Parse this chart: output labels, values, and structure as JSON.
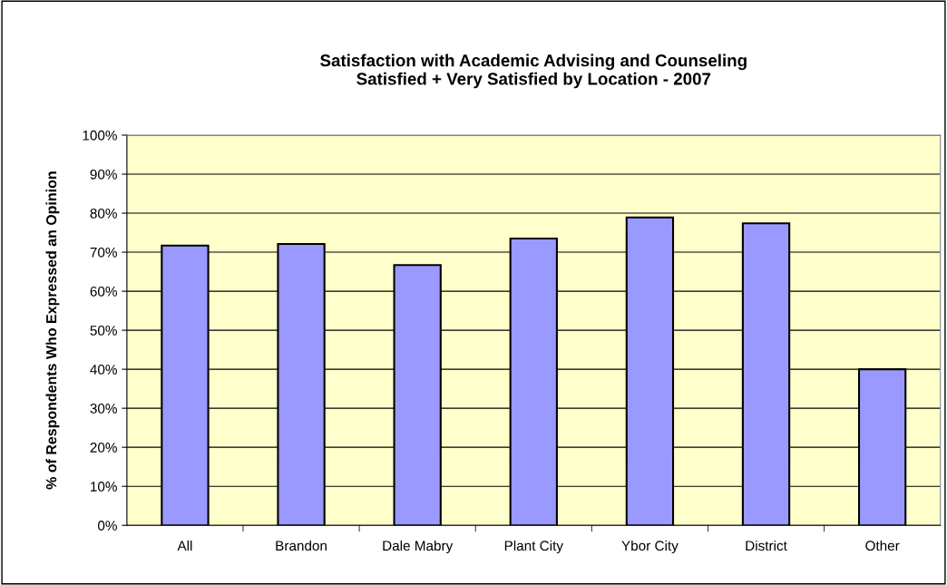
{
  "chart_data": {
    "type": "bar",
    "title": "Satisfaction with Academic Advising and Counseling\nSatisfied + Very Satisfied by Location - 2007",
    "ylabel": "% of Respondents Who Expressed an Opinion",
    "categories": [
      "All",
      "Brandon",
      "Dale Mabry",
      "Plant City",
      "Ybor City",
      "District",
      "Other"
    ],
    "values": [
      71.7,
      72.1,
      66.7,
      73.5,
      78.9,
      77.4,
      40
    ],
    "color": "#9999ff",
    "ylim": [
      0,
      100
    ],
    "yticks": [
      {
        "value": 0,
        "label": "0%"
      },
      {
        "value": 10,
        "label": "10%"
      },
      {
        "value": 20,
        "label": "20%"
      },
      {
        "value": 30,
        "label": "30%"
      },
      {
        "value": 40,
        "label": "40%"
      },
      {
        "value": 50,
        "label": "50%"
      },
      {
        "value": 60,
        "label": "60%"
      },
      {
        "value": 70,
        "label": "70%"
      },
      {
        "value": 80,
        "label": "80%"
      },
      {
        "value": 90,
        "label": "90%"
      },
      {
        "value": 100,
        "label": "100%"
      }
    ],
    "grid": "y",
    "legend": false
  }
}
